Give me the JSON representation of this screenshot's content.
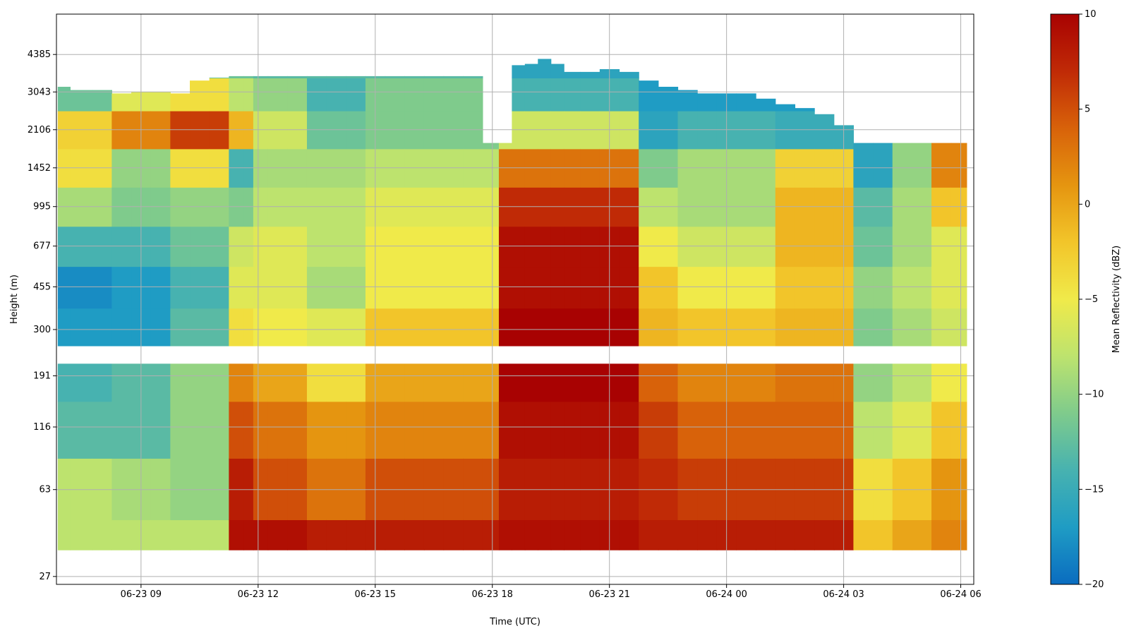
{
  "chart_data": {
    "type": "heatmap",
    "xlabel": "Time (UTC)",
    "ylabel": "Height (m)",
    "colorbar_label": "Mean Reflectivity (dBZ)",
    "x_ticks": [
      "06-23 09",
      "06-23 12",
      "06-23 15",
      "06-23 18",
      "06-23 21",
      "06-24 00",
      "06-24 03",
      "06-24 06"
    ],
    "x_range": [
      "06-23 06:50",
      "06-24 06:20"
    ],
    "y_scale": "log",
    "y_ticks": [
      27,
      63,
      116,
      191,
      300,
      455,
      677,
      995,
      1452,
      2106,
      3043,
      4385
    ],
    "y_range": [
      25,
      6500
    ],
    "clim": [
      -20,
      10
    ],
    "colorbar_ticks": [
      10,
      5,
      0,
      -5,
      -10,
      -15,
      -20
    ],
    "colormap": [
      "#0a6cc0",
      "#1f9cc4",
      "#47b2b0",
      "#7fcb8c",
      "#bde36e",
      "#f0ea4a",
      "#f2c52a",
      "#e59510",
      "#d8620a",
      "#c02a06",
      "#a80202"
    ],
    "grid": true,
    "time_columns": [
      "06:52",
      "07:30",
      "08:00",
      "08:30",
      "09:00",
      "09:30",
      "10:00",
      "10:30",
      "11:00",
      "11:30",
      "11:45",
      "12:00",
      "12:30",
      "13:00",
      "13:30",
      "14:00",
      "14:30",
      "15:00",
      "15:30",
      "16:00",
      "16:30",
      "17:00",
      "17:30",
      "18:00",
      "18:20",
      "18:40",
      "19:00",
      "19:20",
      "19:40",
      "20:00",
      "20:30",
      "21:00",
      "21:30",
      "22:00",
      "22:30",
      "23:00",
      "23:30",
      "00:00",
      "00:30",
      "01:00",
      "01:30",
      "02:00",
      "02:30",
      "03:00",
      "03:30",
      "04:00",
      "04:30",
      "05:00",
      "05:30",
      "06:00"
    ],
    "profiles": {
      "heights_m": [
        35,
        63,
        116,
        191,
        300,
        455,
        677,
        995,
        1452,
        2106,
        3043,
        4000,
        5000
      ],
      "A": [
        -8,
        -8,
        -13,
        -14,
        -17,
        -18,
        -14,
        -9,
        -4,
        -3,
        -12,
        -12,
        -12
      ],
      "B": [
        -8,
        -9,
        -13,
        -13,
        -17,
        -17,
        -14,
        -11,
        -10,
        2,
        -6,
        -12,
        -12
      ],
      "C": [
        -8,
        -10,
        -10,
        -10,
        -13,
        -14,
        -12,
        -10,
        -4,
        6,
        -4,
        -12,
        -12
      ],
      "D": [
        9,
        8,
        5,
        2,
        -4,
        -6,
        -7,
        -11,
        -14,
        -1,
        -8,
        -12,
        -12
      ],
      "E": [
        9,
        5,
        3,
        0,
        -5,
        -6,
        -6,
        -8,
        -9,
        -7,
        -10,
        -13,
        -13
      ],
      "F": [
        8,
        3,
        1,
        -4,
        -6,
        -9,
        -8,
        -8,
        -9,
        -12,
        -14,
        -13,
        -13
      ],
      "G": [
        8,
        5,
        2,
        0,
        -2,
        -5,
        -5,
        -6,
        -8,
        -11,
        -11,
        -13,
        -13
      ],
      "H": [
        9,
        8,
        9,
        10,
        10,
        9,
        9,
        7,
        3,
        -7,
        -14,
        -16,
        -16
      ],
      "I": [
        8,
        7,
        6,
        4,
        -1,
        -2,
        -5,
        -8,
        -11,
        -16,
        -17,
        -18,
        -18
      ],
      "J": [
        8,
        6,
        4,
        2,
        -2,
        -5,
        -7,
        -9,
        -9,
        -14,
        -17,
        -18,
        -18
      ],
      "K": [
        8,
        6,
        4,
        3,
        -1,
        -2,
        -1,
        -1,
        -3,
        -15,
        -17,
        -18,
        -18
      ],
      "L": [
        -2,
        -4,
        -8,
        -10,
        -11,
        -10,
        -12,
        -13,
        -16,
        -16,
        -16,
        -16,
        -16
      ],
      "M": [
        0,
        -2,
        -6,
        -8,
        -9,
        -8,
        -9,
        -9,
        -10,
        -10,
        -10,
        -10,
        -10
      ],
      "N": [
        2,
        1,
        -2,
        -5,
        -7,
        -6,
        -6,
        -2,
        2,
        2,
        2,
        2,
        2
      ]
    },
    "column_profiles": [
      "A",
      "A",
      "A",
      "B",
      "B",
      "B",
      "C",
      "C",
      "C",
      "D",
      "D",
      "E",
      "E",
      "E",
      "F",
      "F",
      "F",
      "G",
      "G",
      "G",
      "G",
      "G",
      "G",
      "G",
      "H",
      "H",
      "H",
      "H",
      "H",
      "H",
      "H",
      "H",
      "H",
      "I",
      "I",
      "J",
      "J",
      "J",
      "J",
      "J",
      "K",
      "K",
      "K",
      "K",
      "L",
      "L",
      "M",
      "M",
      "N",
      "N"
    ],
    "column_tops_m": [
      3200,
      3100,
      3100,
      3000,
      3050,
      3050,
      3000,
      3400,
      3500,
      3550,
      3550,
      3550,
      3550,
      3550,
      3550,
      3550,
      3550,
      3550,
      3550,
      3550,
      3550,
      3550,
      3550,
      1850,
      1850,
      3950,
      4000,
      4200,
      4000,
      3700,
      3700,
      3800,
      3700,
      3400,
      3200,
      3100,
      3000,
      3000,
      3000,
      2850,
      2700,
      2600,
      2450,
      2200,
      1850,
      1850,
      1850,
      1850,
      1850,
      1850
    ]
  }
}
